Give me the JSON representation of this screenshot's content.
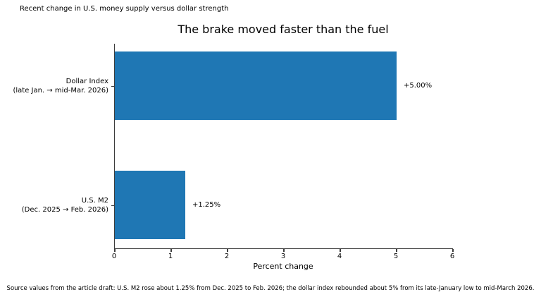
{
  "header_note": "Recent change in U.S. money supply versus dollar strength",
  "footer_note": "Source values from the article draft: U.S. M2 rose about 1.25% from Dec. 2025 to Feb. 2026; the dollar index rebounded about 5% from its late-January low to mid-March 2026.",
  "chart_data": {
    "type": "bar",
    "orientation": "horizontal",
    "title": "The brake moved faster than the fuel",
    "xlabel": "Percent change",
    "ylabel": "",
    "categories": [
      "Dollar Index\n(late Jan. → mid-Mar. 2026)",
      "U.S. M2\n(Dec. 2025 → Feb. 2026)"
    ],
    "values": [
      5.0,
      1.25
    ],
    "bar_labels": [
      "+5.00%",
      "+1.25%"
    ],
    "xlim": [
      0,
      6
    ],
    "xticks": [
      0,
      1,
      2,
      3,
      4,
      5,
      6
    ],
    "bar_color": "#1f77b4",
    "axis_color": "#3c3c3c",
    "grid": false,
    "legend": "none"
  }
}
